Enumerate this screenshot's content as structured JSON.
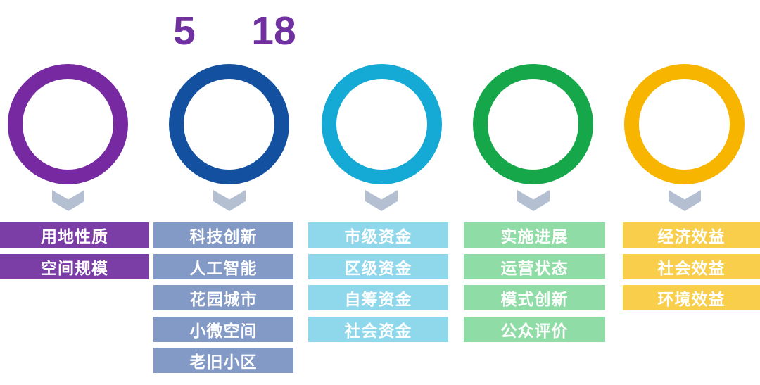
{
  "background": "#FFFFFF",
  "box_text_color": "#FFFFFF",
  "chevron_color": "#B4C0D2",
  "header": {
    "count_left": "5",
    "count_right": "18",
    "count_color": "#7030A0"
  },
  "columns": [
    {
      "ring_color": "#7629A1",
      "box_color": "#7B3DA6",
      "items": [
        "用地性质",
        "空间规模"
      ]
    },
    {
      "ring_color": "#1450A0",
      "box_color": "#8399C6",
      "items": [
        "科技创新",
        "人工智能",
        "花园城市",
        "小微空间",
        "老旧小区"
      ]
    },
    {
      "ring_color": "#14AAD5",
      "box_color": "#8FD8EC",
      "items": [
        "市级资金",
        "区级资金",
        "自筹资金",
        "社会资金"
      ]
    },
    {
      "ring_color": "#17A74B",
      "box_color": "#90DCA6",
      "items": [
        "实施进展",
        "运营状态",
        "模式创新",
        "公众评价"
      ]
    },
    {
      "ring_color": "#F7B500",
      "box_color": "#F8CE4A",
      "items": [
        "经济效益",
        "社会效益",
        "环境效益"
      ]
    }
  ]
}
